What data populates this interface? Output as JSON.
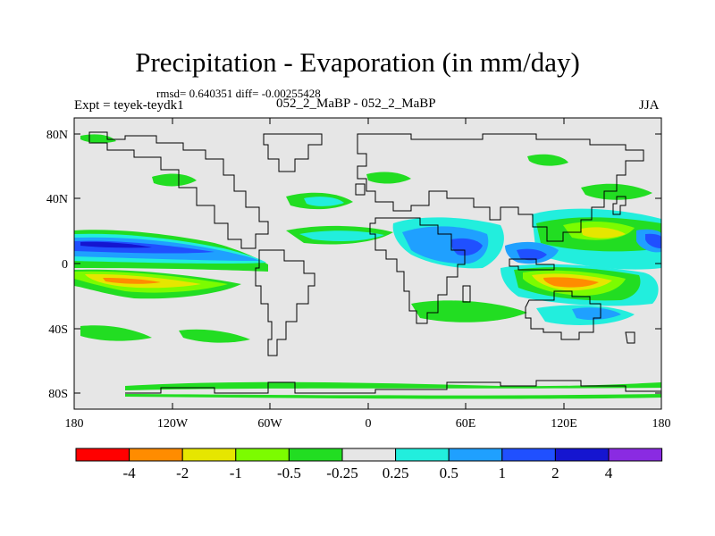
{
  "title": "Precipitation - Evaporation (in mm/day)",
  "stats": "rmsd= 0.640351 diff= -0.00255428",
  "experiment": "Expt = teyek-teydk1",
  "subtitle": "052_2_MaBP - 052_2_MaBP",
  "season": "JJA",
  "y_tick_labels": [
    "80N",
    "40N",
    "0",
    "40S",
    "80S"
  ],
  "x_tick_labels": [
    "180",
    "120W",
    "60W",
    "0",
    "60E",
    "120E",
    "180"
  ],
  "colorbar": {
    "labels": [
      "-4",
      "-2",
      "-1",
      "-0.5",
      "-0.25",
      "0.25",
      "0.5",
      "1",
      "2",
      "4"
    ],
    "colors": [
      "#ff0000",
      "#ff8c00",
      "#e6e600",
      "#7cfc00",
      "#22dd22",
      "#e6e6e6",
      "#22eedd",
      "#1fa0ff",
      "#2050ff",
      "#1515d0",
      "#8a2be2"
    ]
  },
  "field_colors": {
    "land_neutral": "#e6e6e6",
    "wet_light": "#22eedd",
    "wet": "#1fa0ff",
    "wet_strong": "#2050ff",
    "dry_light": "#22dd22",
    "dry": "#7cfc00",
    "dry_mid": "#e6e600",
    "dry_strong": "#ff8c00"
  }
}
